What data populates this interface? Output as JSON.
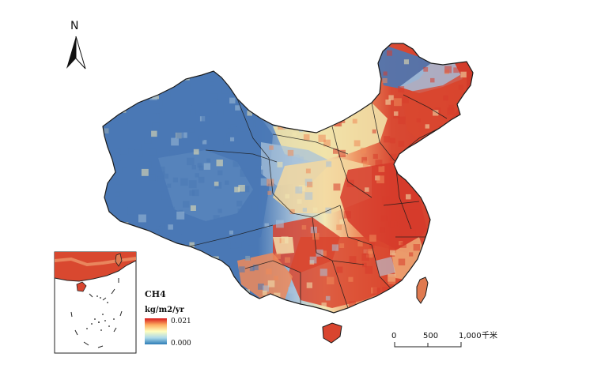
{
  "north_arrow": {
    "label": "N"
  },
  "legend": {
    "title": "CH4",
    "unit": "kg/m2/yr",
    "max_label": "0.021",
    "min_label": "0.000",
    "colors": {
      "high": "#d7191c",
      "mid": "#ffffbf",
      "low": "#2c7bb6"
    }
  },
  "scale_bar": {
    "tick_0": "0",
    "tick_500": "500",
    "tick_1000": "1,000",
    "unit": "千米"
  },
  "map_colors": {
    "west_blue": "#4a78b5",
    "light_blue": "#9fbcd6",
    "cream": "#f5e9b0",
    "orange": "#ef8a5a",
    "red": "#d73c2c",
    "border": "#1a1a1a"
  }
}
